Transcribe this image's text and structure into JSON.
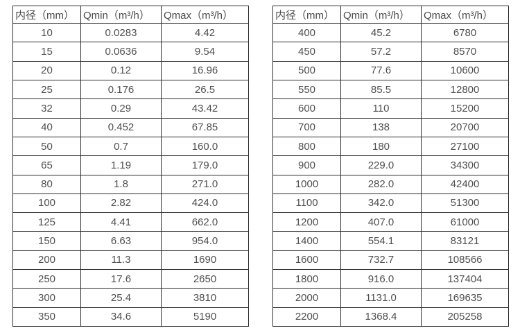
{
  "colors": {
    "border": "#2b2b2b",
    "header_text": "#4a4a4a",
    "cell_text": "#4f4f4f",
    "background": "#ffffff"
  },
  "tables": [
    {
      "name": "flow-table-small-diameters",
      "headers": [
        "内径（mm）",
        "Qmin（m³/h）",
        "Qmax（m³/h）"
      ],
      "rows": [
        [
          "10",
          "0.0283",
          "4.42"
        ],
        [
          "15",
          "0.0636",
          "9.54"
        ],
        [
          "20",
          "0.12",
          "16.96"
        ],
        [
          "25",
          "0.176",
          "26.5"
        ],
        [
          "32",
          "0.29",
          "43.42"
        ],
        [
          "40",
          "0.452",
          "67.85"
        ],
        [
          "50",
          "0.7",
          "160.0"
        ],
        [
          "65",
          "1.19",
          "179.0"
        ],
        [
          "80",
          "1.8",
          "271.0"
        ],
        [
          "100",
          "2.82",
          "424.0"
        ],
        [
          "125",
          "4.41",
          "662.0"
        ],
        [
          "150",
          "6.63",
          "954.0"
        ],
        [
          "200",
          "11.3",
          "1690"
        ],
        [
          "250",
          "17.6",
          "2650"
        ],
        [
          "300",
          "25.4",
          "3810"
        ],
        [
          "350",
          "34.6",
          "5190"
        ]
      ]
    },
    {
      "name": "flow-table-large-diameters",
      "headers": [
        "内径（mm）",
        "Qmin（m³/h）",
        "Qmax（m³/h）"
      ],
      "rows": [
        [
          "400",
          "45.2",
          "6780"
        ],
        [
          "450",
          "57.2",
          "8570"
        ],
        [
          "500",
          "77.6",
          "10600"
        ],
        [
          "550",
          "85.5",
          "12800"
        ],
        [
          "600",
          "110",
          "15200"
        ],
        [
          "700",
          "138",
          "20700"
        ],
        [
          "800",
          "180",
          "27100"
        ],
        [
          "900",
          "229.0",
          "34300"
        ],
        [
          "1000",
          "282.0",
          "42400"
        ],
        [
          "1100",
          "342.0",
          "51300"
        ],
        [
          "1200",
          "407.0",
          "61000"
        ],
        [
          "1400",
          "554.1",
          "83121"
        ],
        [
          "1600",
          "732.7",
          "108566"
        ],
        [
          "1800",
          "916.0",
          "137404"
        ],
        [
          "2000",
          "1131.0",
          "169635"
        ],
        [
          "2200",
          "1368.4",
          "205258"
        ]
      ]
    }
  ]
}
